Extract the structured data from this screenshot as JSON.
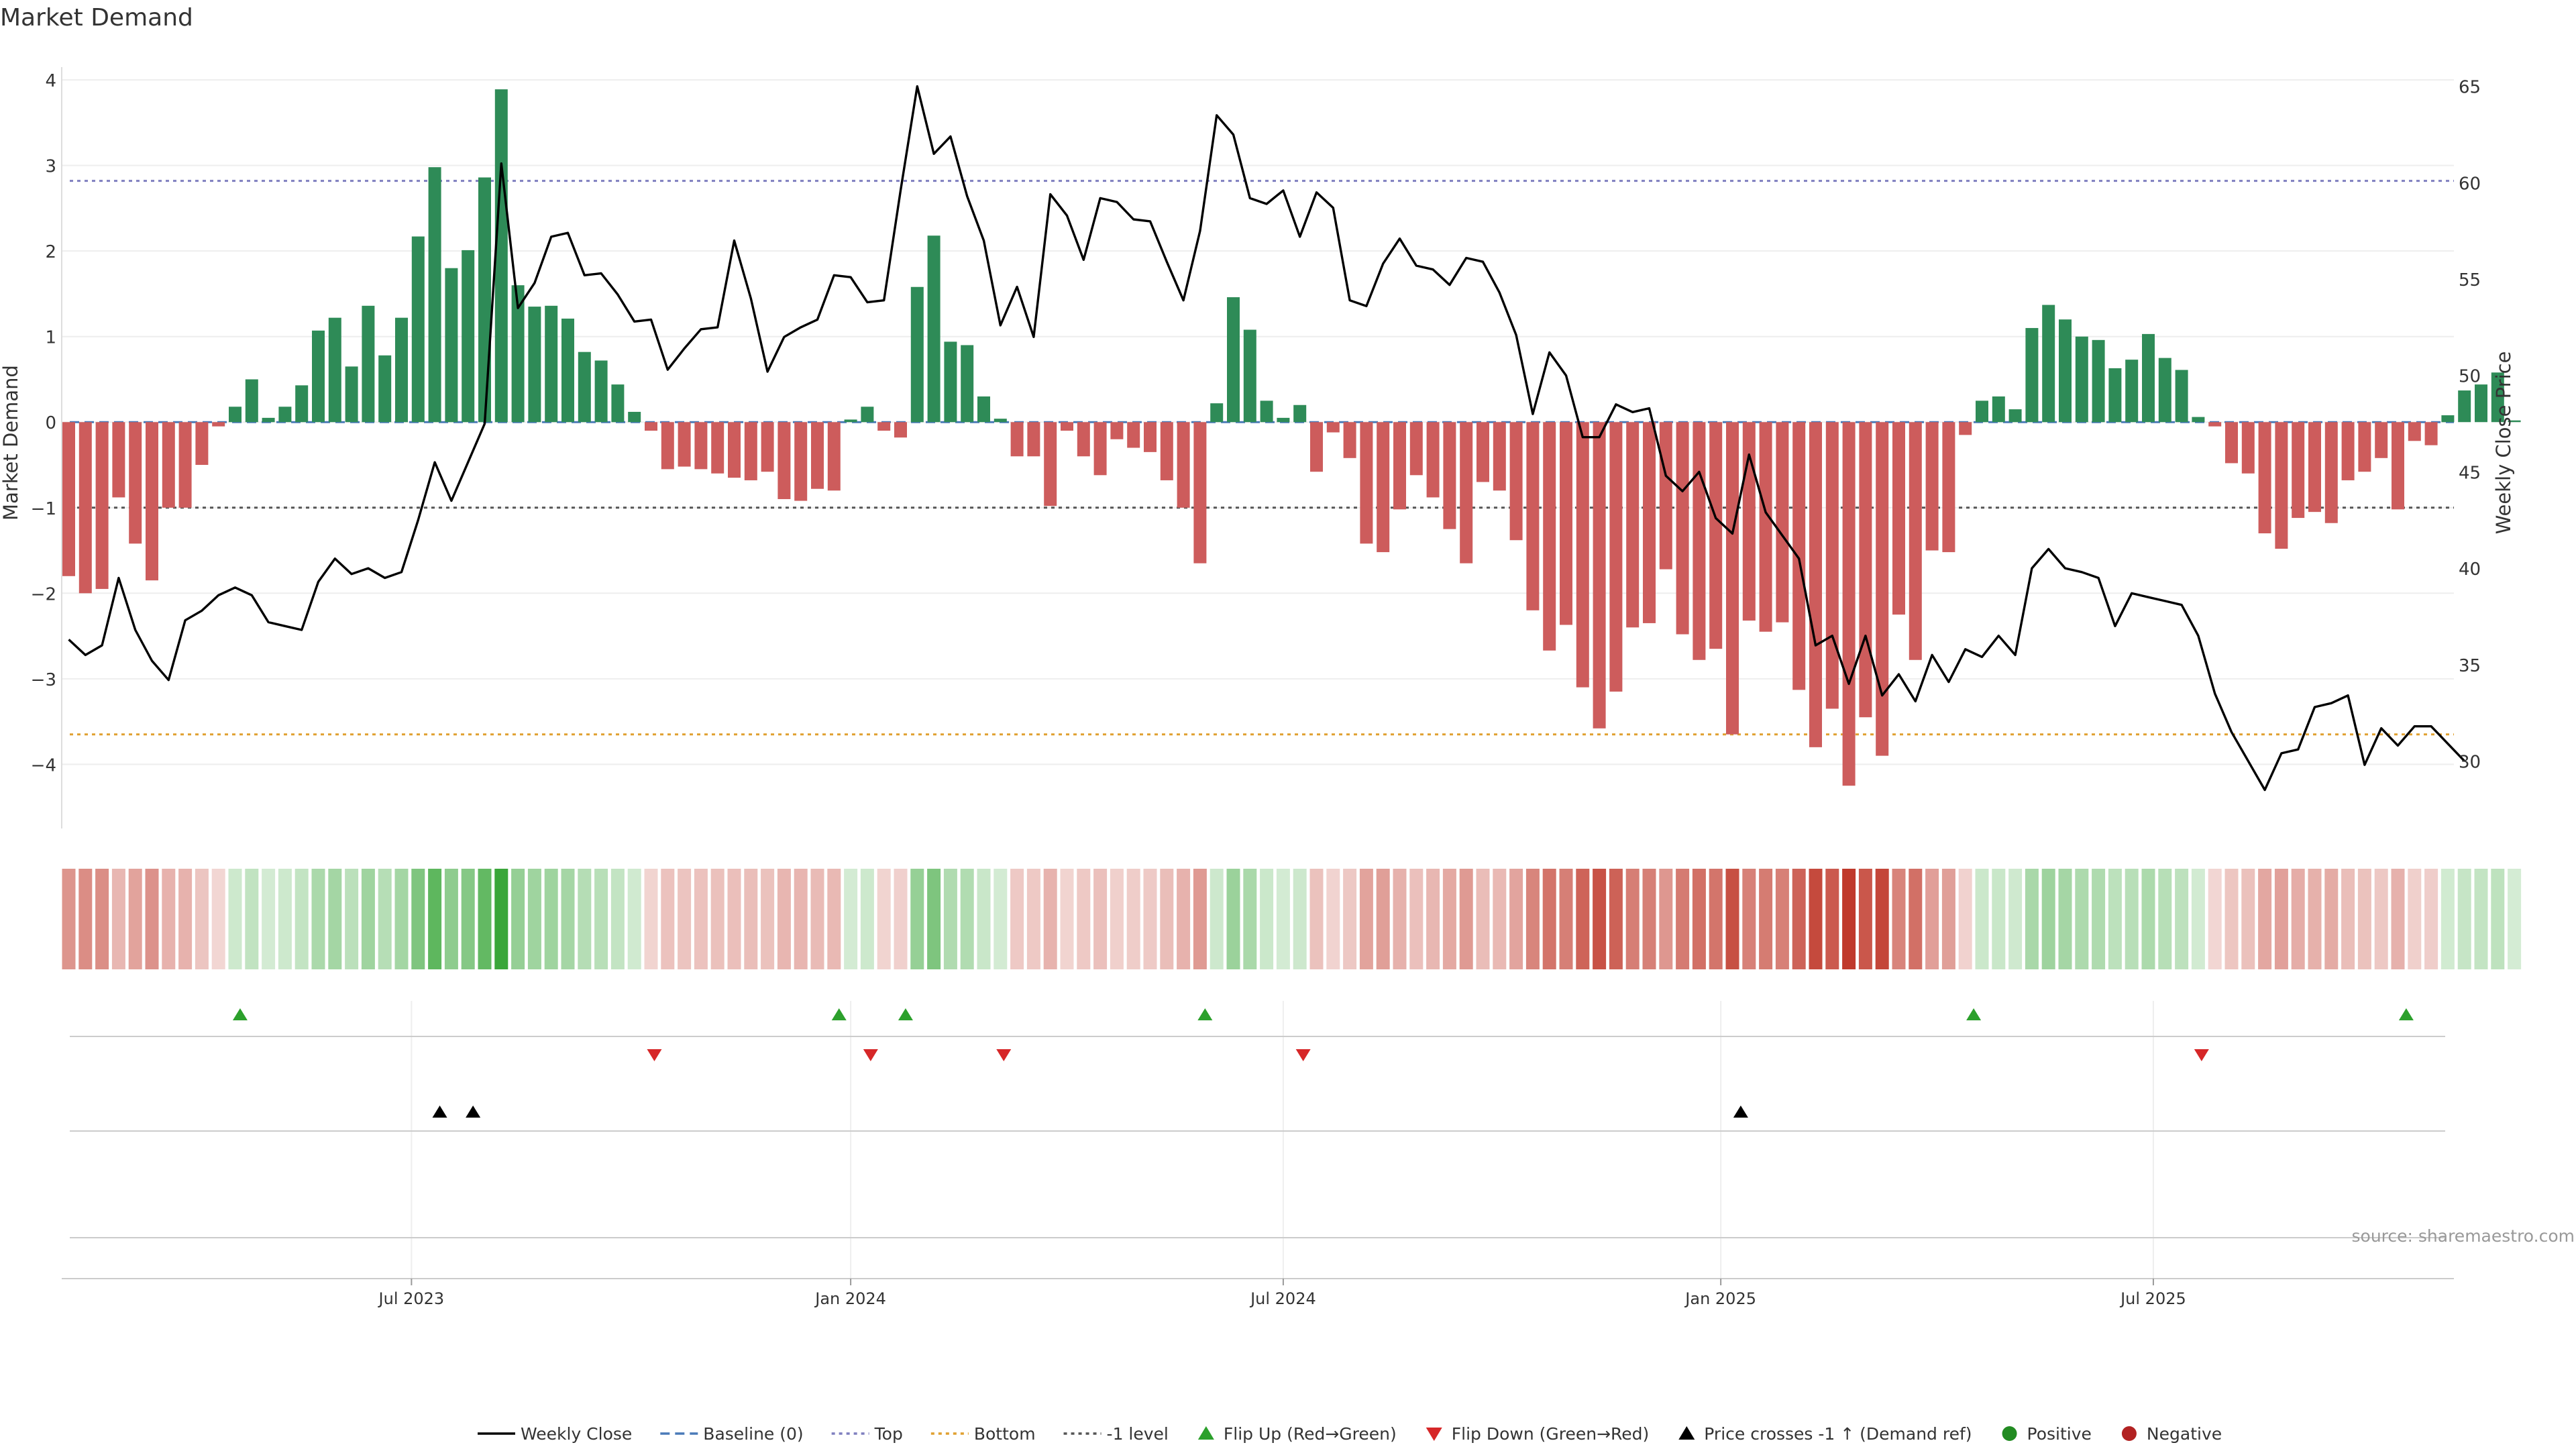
{
  "chart_data": {
    "type": "bar",
    "title": "Market Demand",
    "ylabel_left": "Market Demand",
    "ylabel_right": "Weekly Close Price",
    "source": "source: sharemaestro.com",
    "start_date": "2023-01-02",
    "weeks": 148,
    "ylim_left": [
      -4.75,
      4.15
    ],
    "ylim_right": [
      26.5,
      66.0
    ],
    "yticks_left": [
      {
        "v": 4,
        "label": "4"
      },
      {
        "v": 3,
        "label": "3"
      },
      {
        "v": 2,
        "label": "2"
      },
      {
        "v": 1,
        "label": "1"
      },
      {
        "v": 0,
        "label": "0"
      },
      {
        "v": -1,
        "label": "−1"
      },
      {
        "v": -2,
        "label": "−2"
      },
      {
        "v": -3,
        "label": "−3"
      },
      {
        "v": -4,
        "label": "−4"
      }
    ],
    "yticks_right": [
      {
        "v": 65,
        "label": "65"
      },
      {
        "v": 60,
        "label": "60"
      },
      {
        "v": 55,
        "label": "55"
      },
      {
        "v": 50,
        "label": "50"
      },
      {
        "v": 45,
        "label": "45"
      },
      {
        "v": 40,
        "label": "40"
      },
      {
        "v": 35,
        "label": "35"
      },
      {
        "v": 30,
        "label": "30"
      }
    ],
    "xticks": [
      {
        "week": 20.6,
        "label": "Jul 2023"
      },
      {
        "week": 47.0,
        "label": "Jan 2024"
      },
      {
        "week": 73.0,
        "label": "Jul 2024"
      },
      {
        "week": 99.3,
        "label": "Jan 2025"
      },
      {
        "week": 125.3,
        "label": "Jul 2025"
      }
    ],
    "reference_lines": {
      "top": 2.82,
      "bottom": -3.65,
      "minus_one": -1.0,
      "baseline": 0
    },
    "demand": [
      -1.8,
      -2.0,
      -1.95,
      -0.88,
      -1.42,
      -1.85,
      -1.0,
      -1.0,
      -0.5,
      -0.05,
      0.18,
      0.5,
      0.05,
      0.18,
      0.43,
      1.07,
      1.22,
      0.65,
      1.36,
      0.78,
      1.22,
      2.17,
      2.98,
      1.8,
      2.01,
      2.86,
      3.89,
      1.6,
      1.35,
      1.36,
      1.21,
      0.82,
      0.72,
      0.44,
      0.12,
      -0.1,
      -0.55,
      -0.52,
      -0.55,
      -0.6,
      -0.65,
      -0.68,
      -0.58,
      -0.9,
      -0.92,
      -0.78,
      -0.8,
      0.03,
      0.18,
      -0.1,
      -0.18,
      1.58,
      2.18,
      0.94,
      0.9,
      0.3,
      0.04,
      -0.4,
      -0.4,
      -0.98,
      -0.1,
      -0.4,
      -0.62,
      -0.2,
      -0.3,
      -0.35,
      -0.68,
      -1.0,
      -1.65,
      0.22,
      1.46,
      1.08,
      0.25,
      0.05,
      0.2,
      -0.58,
      -0.12,
      -0.42,
      -1.42,
      -1.52,
      -1.02,
      -0.62,
      -0.88,
      -1.25,
      -1.65,
      -0.7,
      -0.8,
      -1.38,
      -2.2,
      -2.67,
      -2.37,
      -3.1,
      -3.58,
      -3.15,
      -2.4,
      -2.35,
      -1.72,
      -2.48,
      -2.78,
      -2.65,
      -3.65,
      -2.32,
      -2.45,
      -2.34,
      -3.13,
      -3.8,
      -3.35,
      -4.25,
      -3.45,
      -3.9,
      -2.25,
      -2.78,
      -1.5,
      -1.52,
      -0.15,
      0.25,
      0.3,
      0.15,
      1.1,
      1.37,
      1.2,
      1.0,
      0.96,
      0.63,
      0.73,
      1.03,
      0.75,
      0.61,
      0.06,
      -0.05,
      -0.48,
      -0.6,
      -1.3,
      -1.48,
      -1.12,
      -1.05,
      -1.18,
      -0.68,
      -0.58,
      -0.42,
      -1.02,
      -0.22,
      -0.27,
      0.08,
      0.37,
      0.44,
      0.58,
      0.02
    ],
    "close": [
      36.3,
      35.5,
      36.0,
      39.5,
      36.8,
      35.2,
      34.2,
      37.3,
      37.8,
      38.6,
      39.0,
      38.6,
      37.2,
      37.0,
      36.8,
      39.3,
      40.5,
      39.7,
      40.0,
      39.5,
      39.8,
      42.5,
      45.5,
      43.5,
      45.5,
      47.5,
      61.0,
      53.5,
      54.8,
      57.2,
      57.4,
      55.2,
      55.3,
      54.2,
      52.8,
      52.9,
      50.3,
      51.4,
      52.4,
      52.5,
      57.0,
      54.0,
      50.2,
      52.0,
      52.5,
      52.9,
      55.2,
      55.1,
      53.8,
      53.9,
      59.6,
      65.0,
      61.5,
      62.4,
      59.3,
      57.0,
      52.6,
      54.6,
      52.0,
      59.4,
      58.3,
      56.0,
      59.2,
      59.0,
      58.1,
      58.0,
      55.9,
      53.9,
      57.5,
      63.5,
      62.5,
      59.2,
      58.9,
      59.6,
      57.2,
      59.5,
      58.7,
      53.9,
      53.6,
      55.8,
      57.1,
      55.7,
      55.5,
      54.7,
      56.1,
      55.9,
      54.3,
      52.1,
      48.0,
      51.2,
      50.0,
      46.8,
      46.8,
      48.5,
      48.1,
      48.3,
      44.8,
      44.0,
      45.0,
      42.6,
      41.8,
      45.9,
      42.9,
      41.7,
      40.5,
      36.0,
      36.5,
      34.0,
      36.5,
      33.4,
      34.5,
      33.1,
      35.5,
      34.1,
      35.8,
      35.4,
      36.5,
      35.5,
      40.0,
      41.0,
      40.0,
      39.8,
      39.5,
      37.0,
      38.7,
      38.5,
      38.3,
      38.1,
      36.5,
      33.5,
      31.5,
      30.0,
      28.5,
      30.4,
      30.6,
      32.8,
      33.0,
      33.4,
      29.8,
      31.7,
      30.8,
      31.8,
      31.8,
      30.9,
      30.0
    ],
    "flip_up_weeks": [
      10.3,
      46.3,
      50.3,
      68.3,
      114.5,
      140.5
    ],
    "flip_down_weeks": [
      35.2,
      48.2,
      56.2,
      74.2,
      128.2
    ],
    "cross_weeks": [
      22.3,
      24.3,
      100.5
    ],
    "legend": [
      {
        "key": "weekly_close",
        "label": "Weekly Close",
        "style": "line",
        "color": "#000000"
      },
      {
        "key": "baseline",
        "label": "Baseline (0)",
        "style": "dash",
        "color": "#4a7ab8"
      },
      {
        "key": "top",
        "label": "Top",
        "style": "dot",
        "color": "#7f7fbf"
      },
      {
        "key": "bottom",
        "label": "Bottom",
        "style": "dot",
        "color": "#e0a030"
      },
      {
        "key": "minus1",
        "label": "-1 level",
        "style": "dot",
        "color": "#555555"
      },
      {
        "key": "flip_up",
        "label": "Flip Up (Red→Green)",
        "style": "tri-up",
        "color": "#2ca02c"
      },
      {
        "key": "flip_down",
        "label": "Flip Down (Green→Red)",
        "style": "tri-down",
        "color": "#d62728"
      },
      {
        "key": "cross",
        "label": "Price crosses -1 ↑ (Demand ref)",
        "style": "tri-up",
        "color": "#000000"
      },
      {
        "key": "positive",
        "label": "Positive",
        "style": "circle",
        "color": "#228b22"
      },
      {
        "key": "negative",
        "label": "Negative",
        "style": "circle",
        "color": "#b22222"
      }
    ],
    "colors": {
      "positive_bar": "#2e8b57",
      "negative_bar": "#cd5c5c",
      "heat_positive": "#2ca02c",
      "heat_negative": "#c0392b",
      "close_line": "#000000"
    }
  }
}
